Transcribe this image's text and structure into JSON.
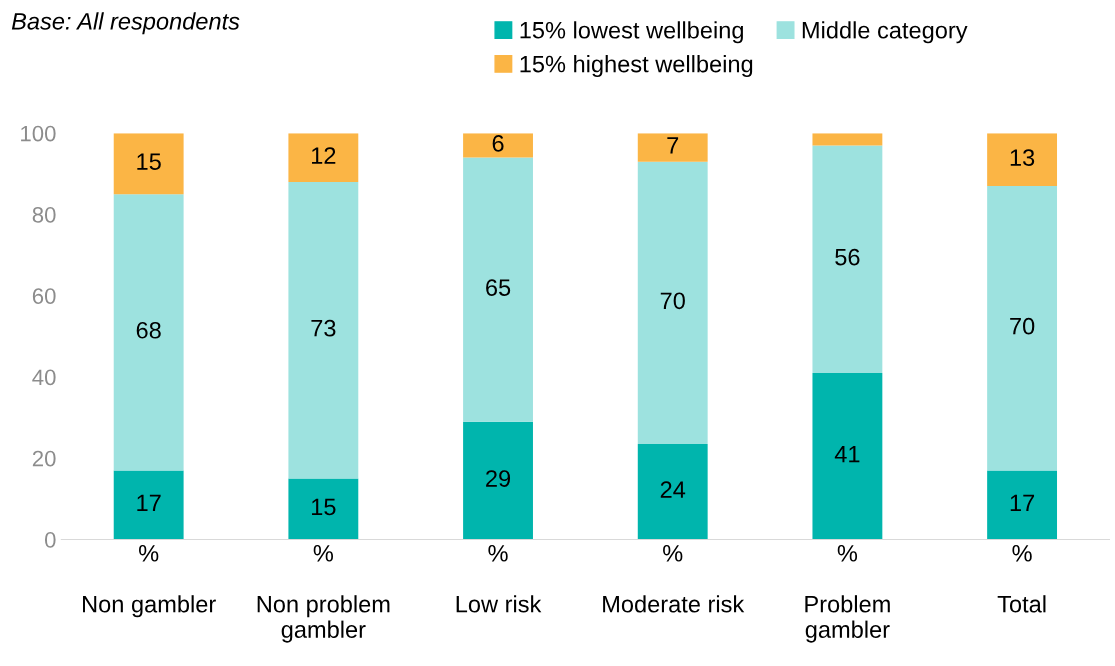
{
  "chart_data": {
    "type": "bar",
    "stacked": true,
    "subtitle": "Base: All respondents",
    "categories": [
      "%\n\nNon gambler",
      "%\n\nNon problem\ngambler",
      "%\n\nLow risk",
      "%\n\nModerate risk",
      "%\n\nProblem\ngambler",
      "%\n\nTotal"
    ],
    "series": [
      {
        "name": "15% lowest wellbeing",
        "color": "#00b5ad",
        "values": [
          17,
          15,
          29,
          23.5,
          41,
          17
        ],
        "value_labels": [
          "17",
          "15",
          "29",
          "24",
          "41",
          "17"
        ]
      },
      {
        "name": "Middle category",
        "color": "#9de2df",
        "values": [
          68,
          73,
          65,
          69.5,
          56,
          70
        ],
        "value_labels": [
          "68",
          "73",
          "65",
          "70",
          "56",
          "70"
        ]
      },
      {
        "name": "15% highest wellbeing",
        "color": "#fbb545",
        "values": [
          15,
          12,
          6,
          7,
          3,
          13
        ],
        "value_labels": [
          "15",
          "12",
          "6",
          "7",
          null,
          "13"
        ]
      }
    ],
    "ylim": [
      0,
      100
    ],
    "yticks": [
      0,
      20,
      40,
      60,
      80,
      100
    ],
    "grid": false,
    "legend": "top"
  }
}
